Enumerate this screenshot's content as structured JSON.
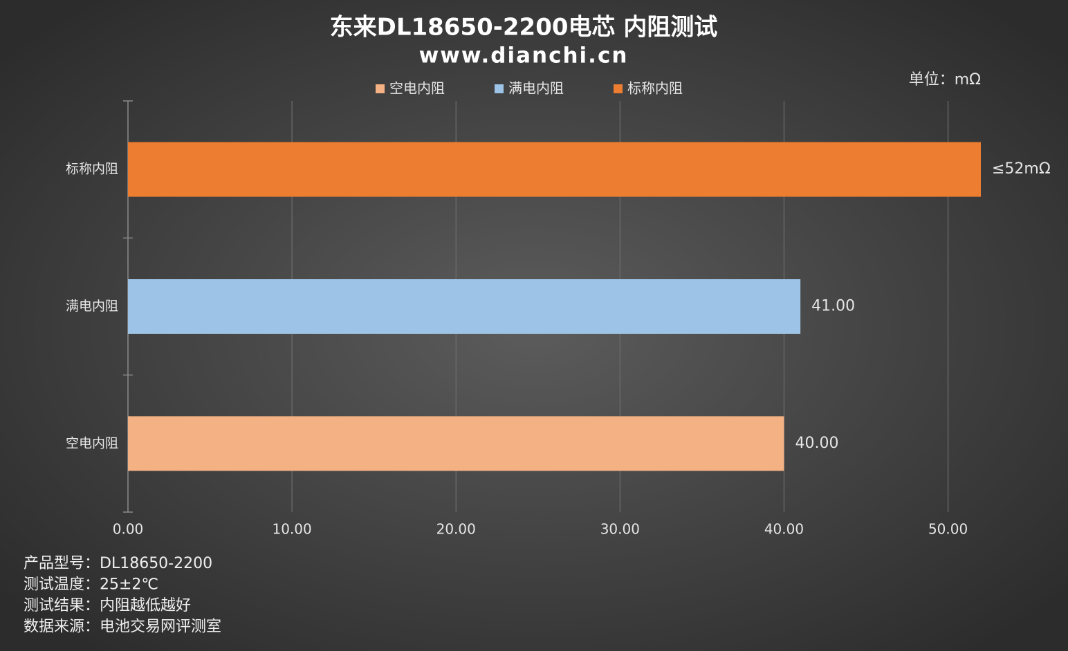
{
  "chart_data": {
    "type": "barh",
    "title": "东来DL18650-2200电芯 内阻测试",
    "subtitle": "www.dianchi.cn",
    "unit": "单位：mΩ",
    "categories": [
      "空电内阻",
      "满电内阻",
      "标称内阻"
    ],
    "values": [
      40,
      41,
      52
    ],
    "value_labels": [
      "40.00",
      "41.00",
      "≤52mΩ"
    ],
    "colors": [
      "#f4b183",
      "#9dc3e6",
      "#ed7d31"
    ],
    "xlim": [
      0,
      52
    ],
    "xticks": [
      {
        "value": 0,
        "label": "0.00"
      },
      {
        "value": 10,
        "label": "10.00"
      },
      {
        "value": 20,
        "label": "20.00"
      },
      {
        "value": 30,
        "label": "30.00"
      },
      {
        "value": 40,
        "label": "40.00"
      },
      {
        "value": 50,
        "label": "50.00"
      }
    ],
    "grid": true,
    "legend": "top",
    "notes": [
      "产品型号：DL18650-2200",
      "测试温度：25±2℃",
      "测试结果：内阻越低越好",
      "数据来源：电池交易网评测室"
    ]
  }
}
